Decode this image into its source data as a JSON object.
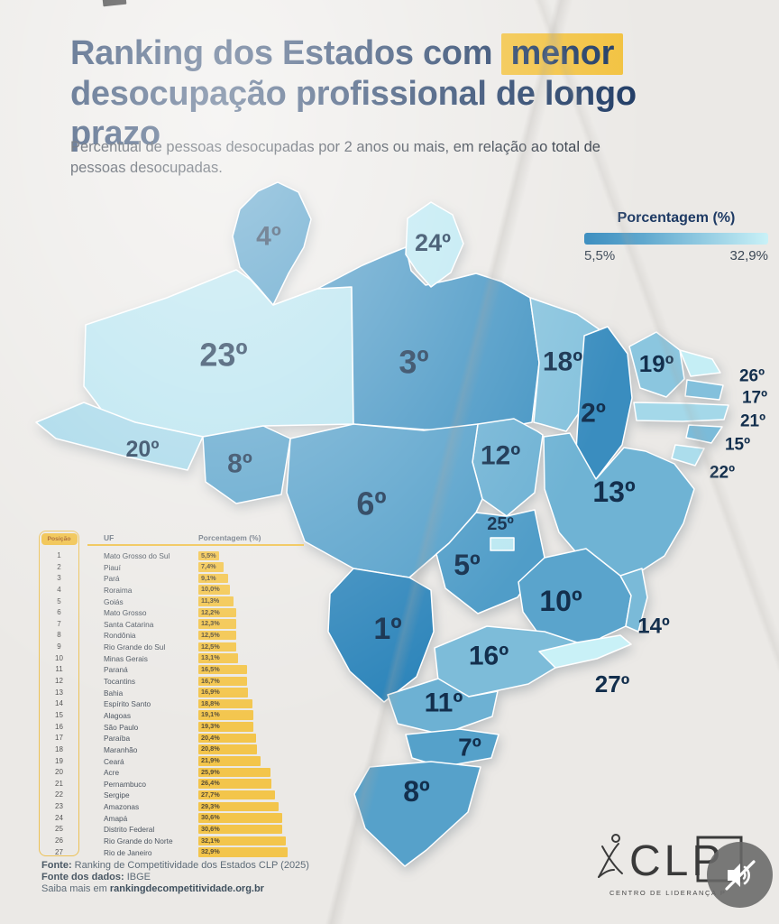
{
  "header": {
    "title_pre": "Ranking dos Estados com",
    "title_highlight": "menor",
    "title_rest": "desocupação profissional de longo prazo",
    "subtitle": "Percentual de pessoas desocupadas por 2 anos ou mais, em relação ao total de pessoas desocupadas.",
    "title_color": "#1e3a64",
    "highlight_bg": "#f2c13d"
  },
  "legend": {
    "title": "Porcentagem (%)",
    "min_label": "5,5%",
    "max_label": "32,9%",
    "color_min": "#2f86bb",
    "color_max": "#c9f1f7"
  },
  "table": {
    "header_position": "Posição",
    "header_uf": "UF",
    "header_pct": "Porcentagem (%)",
    "bar_color": "#f3c54b"
  },
  "chart_data": {
    "type": "choropleth-map",
    "title": "Ranking dos Estados com menor desocupação profissional de longo prazo",
    "unit": "%",
    "legend_title": "Porcentagem (%)",
    "scale_min": 5.5,
    "scale_max": 32.9,
    "states": [
      {
        "rank": 1,
        "uf": "Mato Grosso do Sul",
        "id": "MS",
        "value": 5.5,
        "pct_label": "5,5%",
        "map_label": "1º"
      },
      {
        "rank": 2,
        "uf": "Piauí",
        "id": "PI",
        "value": 7.4,
        "pct_label": "7,4%",
        "map_label": "2º"
      },
      {
        "rank": 3,
        "uf": "Pará",
        "id": "PA",
        "value": 9.1,
        "pct_label": "9,1%",
        "map_label": "3º"
      },
      {
        "rank": 4,
        "uf": "Roraima",
        "id": "RR",
        "value": 10.0,
        "pct_label": "10,0%",
        "map_label": "4º"
      },
      {
        "rank": 5,
        "uf": "Goiás",
        "id": "GO",
        "value": 11.3,
        "pct_label": "11,3%",
        "map_label": "5º"
      },
      {
        "rank": 6,
        "uf": "Mato Grosso",
        "id": "MT",
        "value": 12.2,
        "pct_label": "12,2%",
        "map_label": "6º"
      },
      {
        "rank": 7,
        "uf": "Santa Catarina",
        "id": "SC",
        "value": 12.3,
        "pct_label": "12,3%",
        "map_label": "7º"
      },
      {
        "rank": 8,
        "uf": "Rondônia",
        "id": "RO",
        "value": 12.5,
        "pct_label": "12,5%",
        "map_label": "8º"
      },
      {
        "rank": 9,
        "uf": "Rio Grande do Sul",
        "id": "RS",
        "value": 12.5,
        "pct_label": "12,5%",
        "map_label": "8º"
      },
      {
        "rank": 10,
        "uf": "Minas Gerais",
        "id": "MG",
        "value": 13.1,
        "pct_label": "13,1%",
        "map_label": "10º"
      },
      {
        "rank": 11,
        "uf": "Paraná",
        "id": "PR",
        "value": 16.5,
        "pct_label": "16,5%",
        "map_label": "11º"
      },
      {
        "rank": 12,
        "uf": "Tocantins",
        "id": "TO",
        "value": 16.7,
        "pct_label": "16,7%",
        "map_label": "12º"
      },
      {
        "rank": 13,
        "uf": "Bahia",
        "id": "BA",
        "value": 16.9,
        "pct_label": "16,9%",
        "map_label": "13º"
      },
      {
        "rank": 14,
        "uf": "Espírito Santo",
        "id": "ES",
        "value": 18.8,
        "pct_label": "18,8%",
        "map_label": "14º"
      },
      {
        "rank": 15,
        "uf": "Alagoas",
        "id": "AL",
        "value": 19.1,
        "pct_label": "19,1%",
        "map_label": "15º"
      },
      {
        "rank": 16,
        "uf": "São Paulo",
        "id": "SP",
        "value": 19.3,
        "pct_label": "19,3%",
        "map_label": "16º"
      },
      {
        "rank": 17,
        "uf": "Paraíba",
        "id": "PB",
        "value": 20.4,
        "pct_label": "20,4%",
        "map_label": "17º"
      },
      {
        "rank": 18,
        "uf": "Maranhão",
        "id": "MA",
        "value": 20.8,
        "pct_label": "20,8%",
        "map_label": "18º"
      },
      {
        "rank": 19,
        "uf": "Ceará",
        "id": "CE",
        "value": 21.9,
        "pct_label": "21,9%",
        "map_label": "19º"
      },
      {
        "rank": 20,
        "uf": "Acre",
        "id": "AC",
        "value": 25.9,
        "pct_label": "25,9%",
        "map_label": "20º"
      },
      {
        "rank": 21,
        "uf": "Pernambuco",
        "id": "PE",
        "value": 26.4,
        "pct_label": "26,4%",
        "map_label": "21º"
      },
      {
        "rank": 22,
        "uf": "Sergipe",
        "id": "SE",
        "value": 27.7,
        "pct_label": "27,7%",
        "map_label": "22º"
      },
      {
        "rank": 23,
        "uf": "Amazonas",
        "id": "AM",
        "value": 29.3,
        "pct_label": "29,3%",
        "map_label": "23º"
      },
      {
        "rank": 24,
        "uf": "Amapá",
        "id": "AP",
        "value": 30.6,
        "pct_label": "30,6%",
        "map_label": "24º"
      },
      {
        "rank": 25,
        "uf": "Distrito Federal",
        "id": "DF",
        "value": 30.6,
        "pct_label": "30,6%",
        "map_label": "25º"
      },
      {
        "rank": 26,
        "uf": "Rio Grande do Norte",
        "id": "RN",
        "value": 32.1,
        "pct_label": "32,1%",
        "map_label": "26º"
      },
      {
        "rank": 27,
        "uf": "Rio de Janeiro",
        "id": "RJ",
        "value": 32.9,
        "pct_label": "32,9%",
        "map_label": "27º"
      }
    ]
  },
  "footer": {
    "fonte_label": "Fonte:",
    "fonte_text": "Ranking de Competitividade dos Estados CLP (2025)",
    "dados_label": "Fonte dos dados:",
    "dados_text": "IBGE",
    "saiba_text": "Saiba mais em",
    "saiba_link": "rankingdecompetitividade.org.br"
  },
  "logo": {
    "name": "CLP",
    "tagline": "CENTRO DE LIDERANÇA P"
  }
}
